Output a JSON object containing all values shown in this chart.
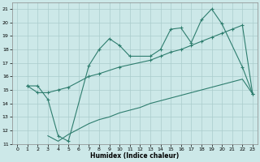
{
  "xlabel": "Humidex (Indice chaleur)",
  "bg_color": "#cce8e8",
  "grid_color": "#aacccc",
  "line_color": "#2e7d6e",
  "xlim": [
    -0.5,
    23.5
  ],
  "ylim": [
    11,
    21.5
  ],
  "xticks": [
    0,
    1,
    2,
    3,
    4,
    5,
    6,
    7,
    8,
    9,
    10,
    11,
    12,
    13,
    14,
    15,
    16,
    17,
    18,
    19,
    20,
    21,
    22,
    23
  ],
  "yticks": [
    11,
    12,
    13,
    14,
    15,
    16,
    17,
    18,
    19,
    20,
    21
  ],
  "line1_x": [
    1,
    2,
    3,
    4,
    5,
    7,
    8,
    9,
    10,
    11,
    13,
    14,
    15,
    16,
    17,
    18,
    19,
    20,
    22,
    23
  ],
  "line1_y": [
    15.3,
    15.3,
    14.3,
    11.6,
    11.2,
    16.8,
    18.0,
    18.8,
    18.3,
    17.5,
    17.5,
    18.0,
    19.5,
    19.6,
    18.5,
    20.2,
    21.0,
    19.9,
    16.7,
    14.7
  ],
  "line2_x": [
    1,
    2,
    3,
    4,
    5,
    7,
    8,
    10,
    13,
    14,
    15,
    16,
    17,
    18,
    19,
    20,
    21,
    22,
    23
  ],
  "line2_y": [
    15.3,
    14.8,
    14.8,
    15.0,
    15.2,
    16.0,
    16.2,
    16.7,
    17.2,
    17.5,
    17.8,
    18.0,
    18.3,
    18.6,
    18.9,
    19.2,
    19.5,
    19.8,
    14.7
  ],
  "line3_x": [
    3,
    4,
    5,
    6,
    7,
    8,
    9,
    10,
    11,
    12,
    13,
    14,
    15,
    16,
    17,
    18,
    19,
    20,
    21,
    22,
    23
  ],
  "line3_y": [
    11.6,
    11.2,
    11.7,
    12.1,
    12.5,
    12.8,
    13.0,
    13.3,
    13.5,
    13.7,
    14.0,
    14.2,
    14.4,
    14.6,
    14.8,
    15.0,
    15.2,
    15.4,
    15.6,
    15.8,
    14.7
  ]
}
